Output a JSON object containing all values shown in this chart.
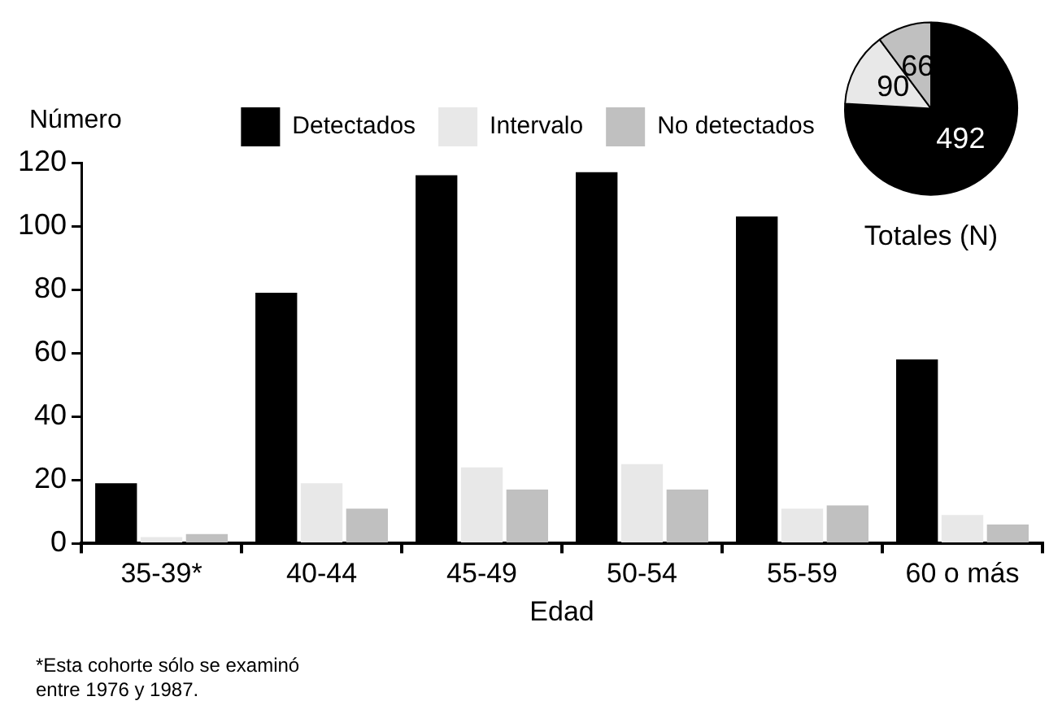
{
  "chart_data": [
    {
      "type": "bar",
      "xlabel": "Edad",
      "ylabel": "Número",
      "categories": [
        "35-39*",
        "40-44",
        "45-49",
        "50-54",
        "55-59",
        "60 o más"
      ],
      "series": [
        {
          "name": "Detectados",
          "color": "#000000",
          "values": [
            19,
            79,
            116,
            117,
            103,
            58
          ]
        },
        {
          "name": "Intervalo",
          "color": "#e8e8e8",
          "values": [
            2,
            19,
            24,
            25,
            11,
            9
          ]
        },
        {
          "name": "No detectados",
          "color": "#c0c0c0",
          "values": [
            3,
            11,
            17,
            17,
            12,
            6
          ]
        }
      ],
      "ylim": [
        0,
        120
      ],
      "yticks": [
        0,
        20,
        40,
        60,
        80,
        100,
        120
      ],
      "grid": false,
      "legend": "top",
      "annotations": [
        "*Esta cohorte sólo se examinó entre 1976 y 1987."
      ]
    },
    {
      "type": "pie",
      "title": "Totales (N)",
      "categories": [
        null,
        null,
        null
      ],
      "values": [
        492,
        90,
        66
      ],
      "colors": [
        "#000000",
        "#e8e8e8",
        "#c0c0c0"
      ],
      "data_labels": true
    }
  ]
}
